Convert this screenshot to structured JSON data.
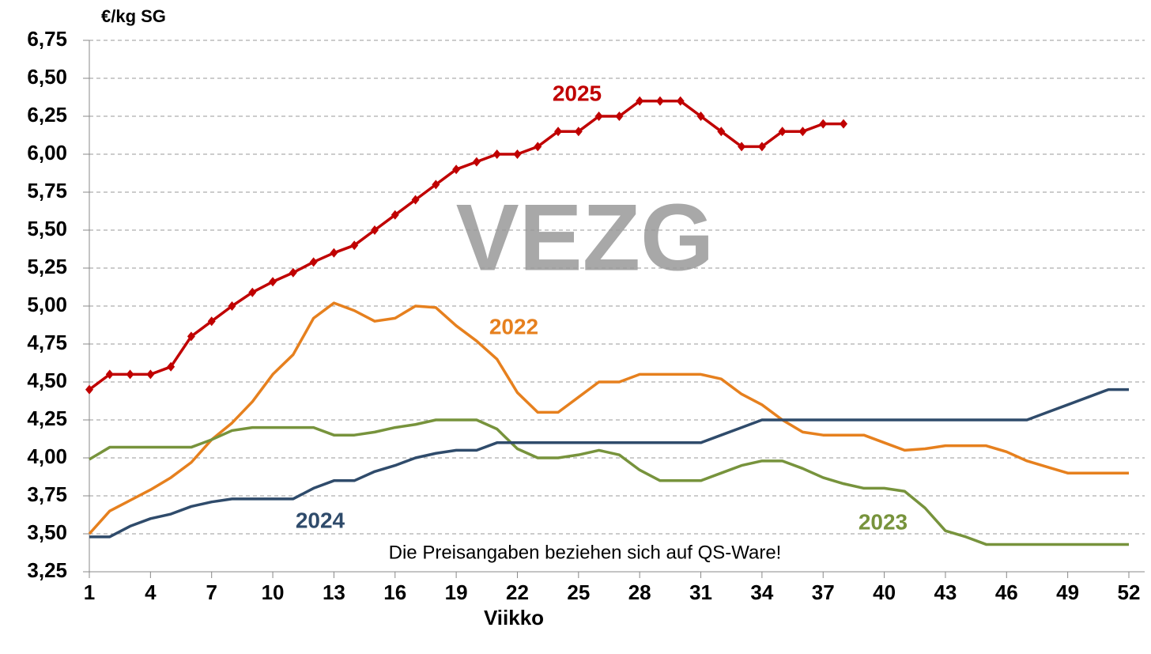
{
  "chart_data": {
    "type": "line",
    "y_label": "€/kg SG",
    "x_label": "Viikko",
    "note": "Die Preisangaben beziehen sich auf QS-Ware!",
    "watermark": "VEZG",
    "x": [
      1,
      2,
      3,
      4,
      5,
      6,
      7,
      8,
      9,
      10,
      11,
      12,
      13,
      14,
      15,
      16,
      17,
      18,
      19,
      20,
      21,
      22,
      23,
      24,
      25,
      26,
      27,
      28,
      29,
      30,
      31,
      32,
      33,
      34,
      35,
      36,
      37,
      38,
      39,
      40,
      41,
      42,
      43,
      44,
      45,
      46,
      47,
      48,
      49,
      50,
      51,
      52
    ],
    "xlim": [
      1,
      52
    ],
    "xticks": [
      1,
      4,
      7,
      10,
      13,
      16,
      19,
      22,
      25,
      28,
      31,
      34,
      37,
      40,
      43,
      46,
      49,
      52
    ],
    "ylim": [
      3.25,
      6.75
    ],
    "yticks": [
      {
        "value": 3.25,
        "label": "3,25"
      },
      {
        "value": 3.5,
        "label": "3,50"
      },
      {
        "value": 3.75,
        "label": "3,75"
      },
      {
        "value": 4,
        "label": "4,00"
      },
      {
        "value": 4.25,
        "label": "4,25"
      },
      {
        "value": 4.5,
        "label": "4,50"
      },
      {
        "value": 4.75,
        "label": "4,75"
      },
      {
        "value": 5,
        "label": "5,00"
      },
      {
        "value": 5.25,
        "label": "5,25"
      },
      {
        "value": 5.5,
        "label": "5,50"
      },
      {
        "value": 5.75,
        "label": "5,75"
      },
      {
        "value": 6,
        "label": "6,00"
      },
      {
        "value": 6.25,
        "label": "6,25"
      },
      {
        "value": 6.5,
        "label": "6,50"
      },
      {
        "value": 6.75,
        "label": "6,75"
      }
    ],
    "grid": true,
    "series": [
      {
        "name": "2025",
        "color": "#c00000",
        "markers": true,
        "values": [
          4.45,
          4.55,
          4.55,
          4.55,
          4.6,
          4.8,
          4.9,
          5.0,
          5.09,
          5.16,
          5.22,
          5.29,
          5.35,
          5.4,
          5.5,
          5.6,
          5.7,
          5.8,
          5.9,
          5.95,
          6.0,
          6.0,
          6.05,
          6.15,
          6.15,
          6.25,
          6.25,
          6.35,
          6.35,
          6.35,
          6.25,
          6.15,
          6.05,
          6.05,
          6.15,
          6.15,
          6.2,
          6.2,
          null,
          null,
          null,
          null,
          null,
          null,
          null,
          null,
          null,
          null,
          null,
          null,
          null,
          null
        ]
      },
      {
        "name": "2022",
        "color": "#e6801e",
        "markers": false,
        "values": [
          3.5,
          3.65,
          3.72,
          3.79,
          3.87,
          3.97,
          4.12,
          4.23,
          4.37,
          4.55,
          4.68,
          4.92,
          5.02,
          4.97,
          4.9,
          4.92,
          5.0,
          4.99,
          4.87,
          4.77,
          4.65,
          4.43,
          4.3,
          4.3,
          4.4,
          4.5,
          4.5,
          4.55,
          4.55,
          4.55,
          4.55,
          4.52,
          4.42,
          4.35,
          4.25,
          4.17,
          4.15,
          4.15,
          4.15,
          4.1,
          4.05,
          4.06,
          4.08,
          4.08,
          4.08,
          4.04,
          3.98,
          3.94,
          3.9,
          3.9,
          3.9,
          3.9
        ]
      },
      {
        "name": "2023",
        "color": "#77933c",
        "markers": false,
        "values": [
          3.99,
          4.07,
          4.07,
          4.07,
          4.07,
          4.07,
          4.12,
          4.18,
          4.2,
          4.2,
          4.2,
          4.2,
          4.15,
          4.15,
          4.17,
          4.2,
          4.22,
          4.25,
          4.25,
          4.25,
          4.19,
          4.06,
          4.0,
          4.0,
          4.02,
          4.05,
          4.02,
          3.92,
          3.85,
          3.85,
          3.85,
          3.9,
          3.95,
          3.98,
          3.98,
          3.93,
          3.87,
          3.83,
          3.8,
          3.8,
          3.78,
          3.67,
          3.52,
          3.48,
          3.43,
          3.43,
          3.43,
          3.43,
          3.43,
          3.43,
          3.43,
          3.43
        ]
      },
      {
        "name": "2024",
        "color": "#2f4b6b",
        "markers": false,
        "values": [
          3.48,
          3.48,
          3.55,
          3.6,
          3.63,
          3.68,
          3.71,
          3.73,
          3.73,
          3.73,
          3.73,
          3.8,
          3.85,
          3.85,
          3.91,
          3.95,
          4.0,
          4.03,
          4.05,
          4.05,
          4.1,
          4.1,
          4.1,
          4.1,
          4.1,
          4.1,
          4.1,
          4.1,
          4.1,
          4.1,
          4.1,
          4.15,
          4.2,
          4.25,
          4.25,
          4.25,
          4.25,
          4.25,
          4.25,
          4.25,
          4.25,
          4.25,
          4.25,
          4.25,
          4.25,
          4.25,
          4.25,
          4.3,
          4.35,
          4.4,
          4.45,
          4.45
        ]
      }
    ]
  }
}
